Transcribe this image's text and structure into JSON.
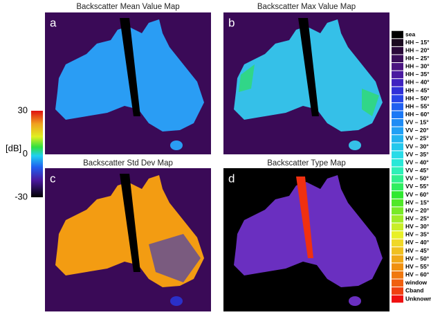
{
  "panels": [
    {
      "letter": "a",
      "title": "Backscatter Mean Value Map"
    },
    {
      "letter": "b",
      "title": "Backscatter Max Value Map"
    },
    {
      "letter": "c",
      "title": "Backscatter Std Dev Map"
    },
    {
      "letter": "d",
      "title": "Backscatter Type Map"
    }
  ],
  "colorbar": {
    "unit": "[dB]",
    "ticks": [
      30,
      0,
      -30
    ]
  },
  "legend": {
    "items": [
      {
        "label": "sea",
        "color": "#000000"
      },
      {
        "label": "HH – 15°",
        "color": "#1a0a1f"
      },
      {
        "label": "HH – 20°",
        "color": "#2a0a3a"
      },
      {
        "label": "HH – 25°",
        "color": "#3a0f5a"
      },
      {
        "label": "HH – 30°",
        "color": "#4a1580"
      },
      {
        "label": "HH – 35°",
        "color": "#4a1aa0"
      },
      {
        "label": "HH – 40°",
        "color": "#3f22c0"
      },
      {
        "label": "HH – 45°",
        "color": "#3030d8"
      },
      {
        "label": "HH – 50°",
        "color": "#2845e8"
      },
      {
        "label": "HH – 55°",
        "color": "#2060f0"
      },
      {
        "label": "HH – 60°",
        "color": "#1a78f5"
      },
      {
        "label": "VV – 15°",
        "color": "#1e8cf5"
      },
      {
        "label": "VV – 20°",
        "color": "#20a0f5"
      },
      {
        "label": "VV – 25°",
        "color": "#22b4f0"
      },
      {
        "label": "VV – 30°",
        "color": "#25c8ec"
      },
      {
        "label": "VV – 35°",
        "color": "#28dce8"
      },
      {
        "label": "VV – 40°",
        "color": "#2ae8d8"
      },
      {
        "label": "VV – 45°",
        "color": "#2ef0b8"
      },
      {
        "label": "VV – 50°",
        "color": "#30f090"
      },
      {
        "label": "VV – 55°",
        "color": "#30ee60"
      },
      {
        "label": "VV – 60°",
        "color": "#30e830"
      },
      {
        "label": "HV – 15°",
        "color": "#50e828"
      },
      {
        "label": "HV – 20°",
        "color": "#78ea28"
      },
      {
        "label": "HV – 25°",
        "color": "#a0ec28"
      },
      {
        "label": "HV – 30°",
        "color": "#c8ee28"
      },
      {
        "label": "HV – 35°",
        "color": "#e8f028"
      },
      {
        "label": "HV – 40°",
        "color": "#f0d828"
      },
      {
        "label": "HV – 45°",
        "color": "#f0c020"
      },
      {
        "label": "HV – 50°",
        "color": "#f0a818"
      },
      {
        "label": "HV – 55°",
        "color": "#f09010"
      },
      {
        "label": "HV – 60°",
        "color": "#f07810"
      },
      {
        "label": "window",
        "color": "#f06010"
      },
      {
        "label": "Cband",
        "color": "#f04010"
      },
      {
        "label": "Unknown",
        "color": "#f01010"
      }
    ]
  }
}
